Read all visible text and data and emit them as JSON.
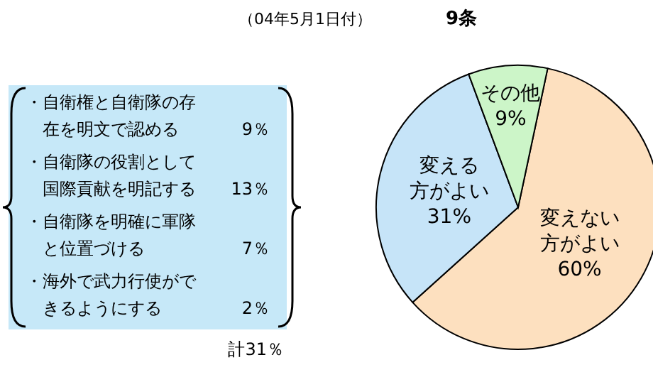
{
  "chart_data": [
    {
      "type": "other",
      "annotations": [
        "・自衛権と自衛隊の存在を明文で認める",
        "9％",
        "・自衛隊の役割として国際貢献を明記する",
        "13％",
        "・自衛隊を明確に軍隊と位置づける",
        "7％",
        "・海外で武力行使ができるようにする",
        "2％",
        "計31％"
      ]
    },
    {
      "type": "pie",
      "title": "9条",
      "annotations": [
        "（04年5月1日付）"
      ],
      "categories": [
        "変えない方がよい",
        "変える方がよい",
        "その他"
      ],
      "values": [
        60,
        31,
        9
      ],
      "colors": [
        "#fde0bf",
        "#c6e4f8",
        "#ccf5c8"
      ],
      "value_labels": [
        "60%",
        "31%",
        "9%"
      ]
    }
  ]
}
